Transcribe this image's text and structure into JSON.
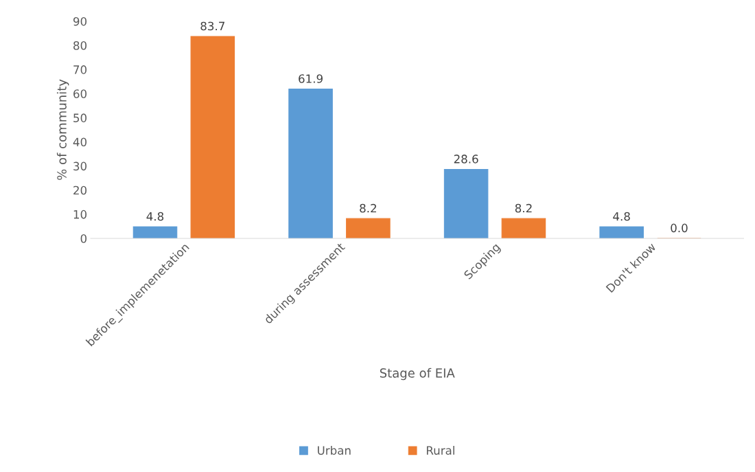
{
  "chart_data": {
    "type": "bar",
    "xlabel": "Stage of EIA",
    "ylabel": "% of community",
    "categories": [
      "before_implemenetation",
      "during assessment",
      "Scoping",
      "Don't know"
    ],
    "series": [
      {
        "name": "Urban",
        "color": "#5b9bd5",
        "values": [
          4.8,
          61.9,
          28.6,
          4.8
        ],
        "value_labels": [
          "4.8",
          "61.9",
          "28.6",
          "4.8"
        ]
      },
      {
        "name": "Rural",
        "color": "#ed7d31",
        "values": [
          83.7,
          8.2,
          8.2,
          0.0
        ],
        "value_labels": [
          "83.7",
          "8.2",
          "8.2",
          "0.0"
        ]
      }
    ],
    "ylim": [
      0,
      90
    ],
    "yticks": [
      0,
      10,
      20,
      30,
      40,
      50,
      60,
      70,
      80,
      90
    ],
    "grid": false,
    "legend": "bottom"
  }
}
